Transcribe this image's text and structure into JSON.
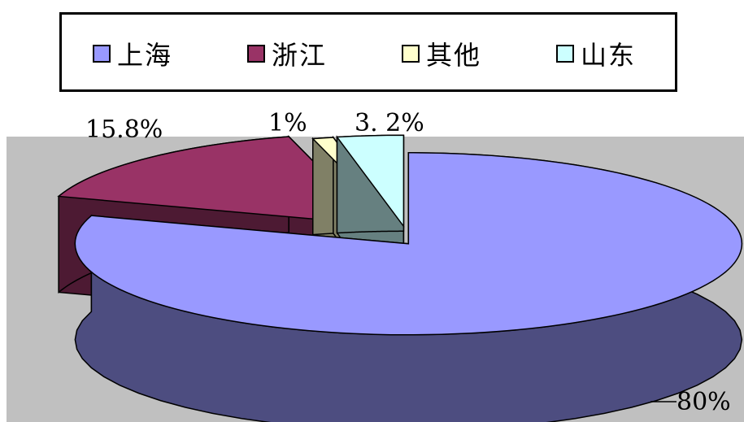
{
  "chart_data": {
    "type": "pie",
    "style": "3d-exploded",
    "legend_position": "top",
    "series": [
      {
        "name": "上海",
        "value": 80,
        "label": "80%",
        "color": "#9999ff",
        "side_color": "#4d4d80"
      },
      {
        "name": "浙江",
        "value": 15.8,
        "label": "15.8%",
        "color": "#993366",
        "side_color": "#4d1a33"
      },
      {
        "name": "其他",
        "value": 1,
        "label": "1%",
        "color": "#ffffcc",
        "side_color": "#808066"
      },
      {
        "name": "山东",
        "value": 3.2,
        "label": "3. 2%",
        "color": "#ccffff",
        "side_color": "#668080"
      }
    ],
    "plot_background": "#c0c0c0"
  }
}
